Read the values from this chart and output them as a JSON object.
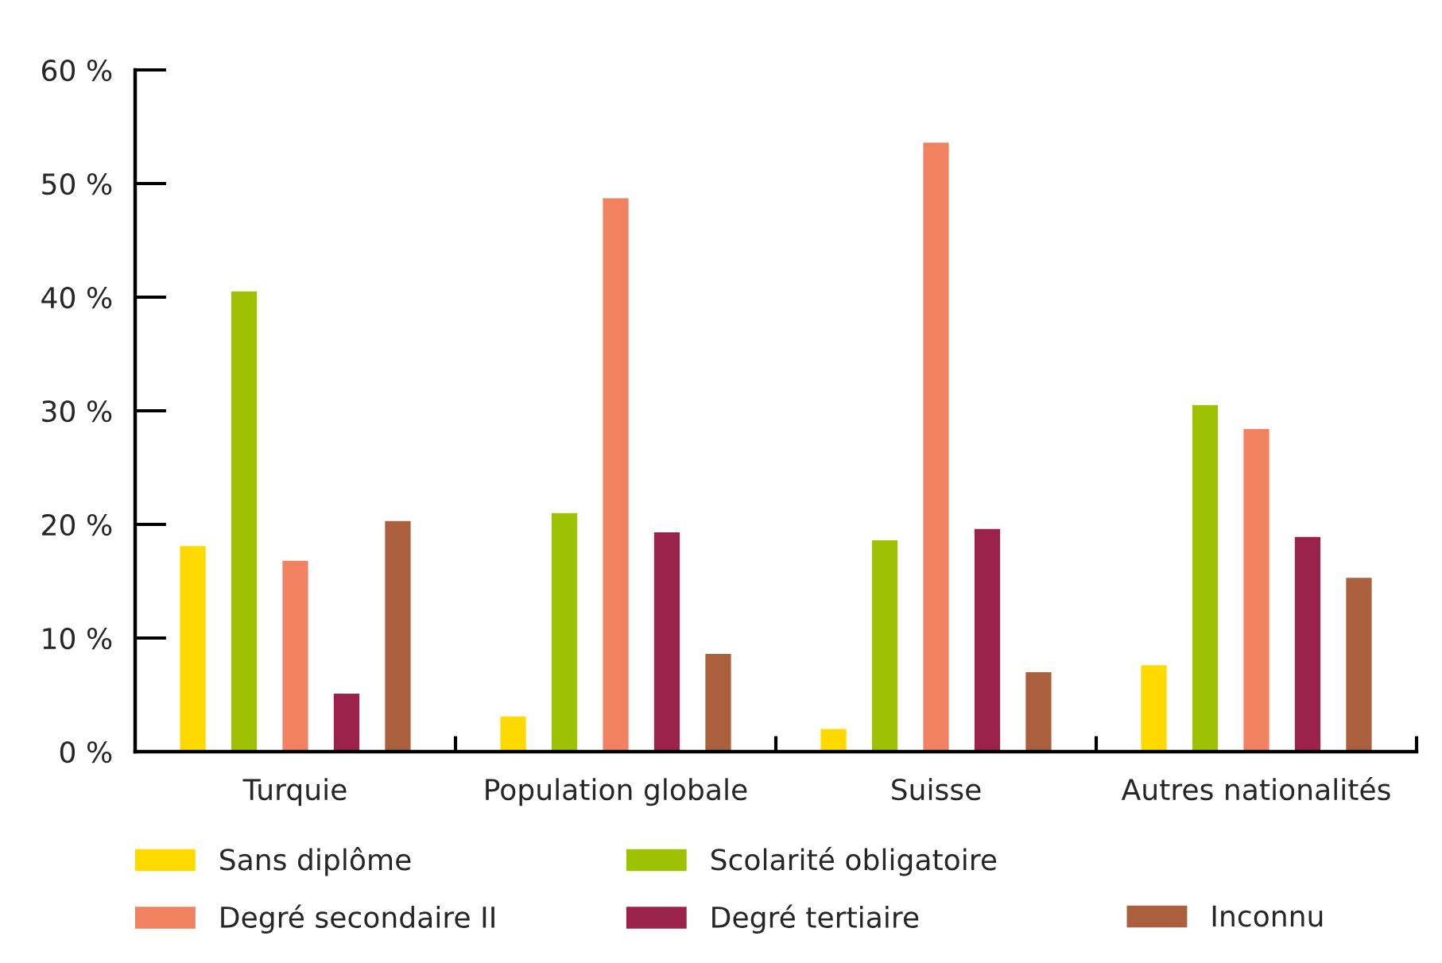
{
  "chart_data": {
    "type": "bar",
    "categories": [
      "Turquie",
      "Population globale",
      "Suisse",
      "Autres nationalités"
    ],
    "series": [
      {
        "name": "Sans diplôme",
        "color": "#ffd900",
        "values": [
          18.1,
          3.1,
          2.0,
          7.6
        ]
      },
      {
        "name": "Scolarité obligatoire",
        "color": "#9ec103",
        "values": [
          40.5,
          21.0,
          18.6,
          30.5
        ]
      },
      {
        "name": "Degré secondaire II",
        "color": "#f08161",
        "values": [
          16.8,
          48.7,
          53.6,
          28.4
        ]
      },
      {
        "name": "Degré tertiaire",
        "color": "#9b224b",
        "values": [
          5.1,
          19.3,
          19.6,
          18.9
        ]
      },
      {
        "name": "Inconnu",
        "color": "#aa603c",
        "values": [
          20.3,
          8.6,
          7.0,
          15.3
        ]
      }
    ],
    "ylim": [
      0,
      60
    ],
    "yticks": [
      {
        "value": 0,
        "label": "0 %"
      },
      {
        "value": 10,
        "label": "10 %"
      },
      {
        "value": 20,
        "label": "20 %"
      },
      {
        "value": 30,
        "label": "30 %"
      },
      {
        "value": 40,
        "label": "40 %"
      },
      {
        "value": 50,
        "label": "50 %"
      },
      {
        "value": 60,
        "label": "60 %"
      }
    ],
    "legend": "bottom"
  }
}
